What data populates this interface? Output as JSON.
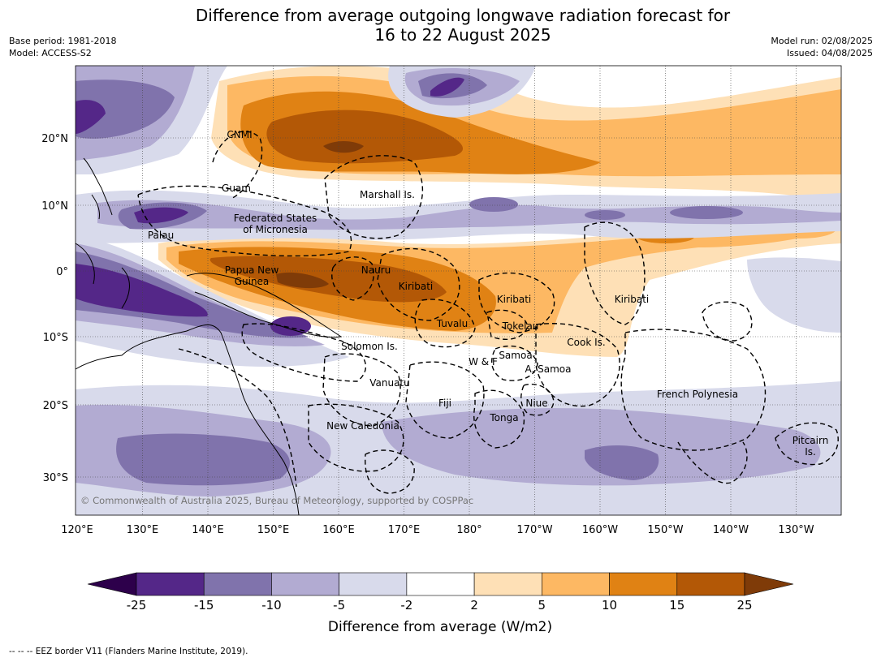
{
  "title_line1": "Difference from average outgoing longwave radiation forecast for",
  "title_line2": "16 to 22 August 2025",
  "meta": {
    "base_period": "Base period: 1981-2018",
    "model": "Model: ACCESS-S2",
    "model_run": "Model run: 02/08/2025",
    "issued": "Issued: 04/08/2025"
  },
  "lon_labels": [
    "120°E",
    "130°E",
    "140°E",
    "150°E",
    "160°E",
    "170°E",
    "180°",
    "170°W",
    "160°W",
    "150°W",
    "140°W",
    "130°W"
  ],
  "lat_labels": [
    "20°N",
    "10°N",
    "0°",
    "10°S",
    "20°S",
    "30°S"
  ],
  "place_labels": {
    "cnmi": "CNMI",
    "guam": "Guam",
    "marshall": "Marshall Is.",
    "fsm1": "Federated States",
    "fsm2": "of Micronesia",
    "palau": "Palau",
    "png1": "Papua New",
    "png2": "Guinea",
    "nauru": "Nauru",
    "kiribati1": "Kiribati",
    "kiribati2": "Kiribati",
    "kiribati3": "Kiribati",
    "tuvalu": "Tuvalu",
    "tokelau": "Tokelau",
    "cook": "Cook Is.",
    "solomon": "Solomon Is.",
    "wf": "W & F",
    "samoa": "Samoa",
    "asamoa": "A. Samoa",
    "vanuatu": "Vanuatu",
    "fiji": "Fiji",
    "niue": "Niue",
    "tonga": "Tonga",
    "frenchpoly": "French Polynesia",
    "pitcairn1": "Pitcairn",
    "pitcairn2": "Is.",
    "newcal": "New Caledonia"
  },
  "copyright": "© Commonwealth of Australia 2025, Bureau of Meteorology, supported by COSPPac",
  "colorbar": {
    "ticks": [
      "-25",
      "-15",
      "-10",
      "-5",
      "-2",
      "2",
      "5",
      "10",
      "15",
      "25"
    ],
    "colors": [
      "#542788",
      "#8073ac",
      "#b2abd2",
      "#d8daeb",
      "#ffffff",
      "#fee0b6",
      "#fdb863",
      "#e08214",
      "#b35806"
    ],
    "under_color": "#2d004b",
    "over_color": "#7f3b08",
    "label": "Difference from average (W/m2)"
  },
  "footer": "--  --  -- EEZ border V11 (Flanders Marine Institute, 2019)."
}
